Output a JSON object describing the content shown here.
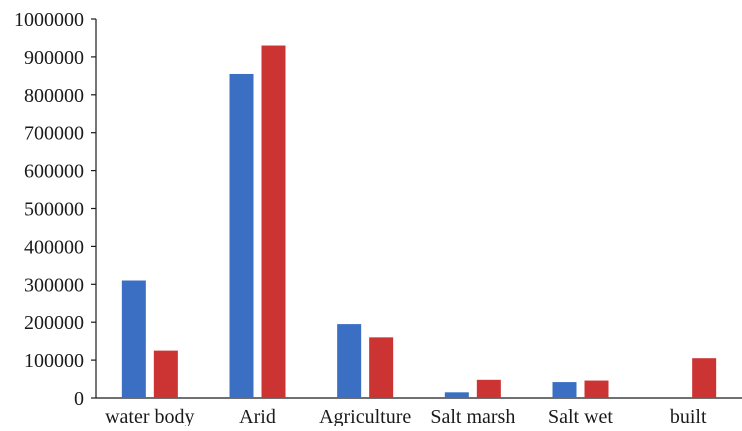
{
  "chart_data": {
    "type": "bar",
    "categories": [
      "water body",
      "Arid",
      "Agriculture",
      "Salt marsh",
      "Salt wet",
      "built"
    ],
    "series": [
      {
        "values": [
          310000,
          855000,
          195000,
          15000,
          42000,
          0
        ],
        "color": "#3a6fc4"
      },
      {
        "values": [
          125000,
          930000,
          160000,
          48000,
          46000,
          105000
        ],
        "color": "#cc3333"
      }
    ],
    "ylim": [
      0,
      1000000
    ],
    "yticks": [
      "0",
      "100000",
      "200000",
      "300000",
      "400000",
      "500000",
      "600000",
      "700000",
      "800000",
      "900000",
      "1000000"
    ],
    "grid": false,
    "legend": "none"
  }
}
